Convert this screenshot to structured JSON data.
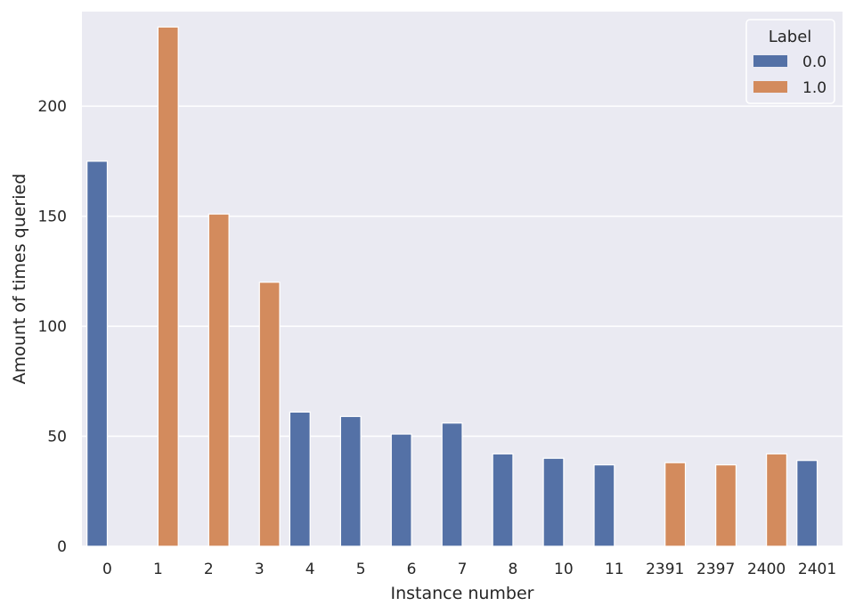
{
  "chart_data": {
    "type": "bar",
    "xlabel": "Instance number",
    "ylabel": "Amount of times queried",
    "categories": [
      "0",
      "1",
      "2",
      "3",
      "4",
      "5",
      "6",
      "7",
      "8",
      "10",
      "11",
      "2391",
      "2397",
      "2400",
      "2401"
    ],
    "series": [
      {
        "name": "0.0",
        "color": "#5471a6",
        "values": [
          175,
          null,
          null,
          null,
          61,
          59,
          51,
          56,
          42,
          40,
          37,
          null,
          null,
          null,
          39
        ]
      },
      {
        "name": "1.0",
        "color": "#d38b5d",
        "values": [
          null,
          236,
          151,
          120,
          null,
          null,
          null,
          null,
          null,
          null,
          null,
          38,
          37,
          42,
          null
        ]
      }
    ],
    "ylim": [
      0,
      243
    ],
    "yticks": [
      0,
      50,
      100,
      150,
      200
    ],
    "grid": true,
    "legend": {
      "title": "Label",
      "placement": "top-right"
    },
    "background": "#eaeaf2"
  }
}
